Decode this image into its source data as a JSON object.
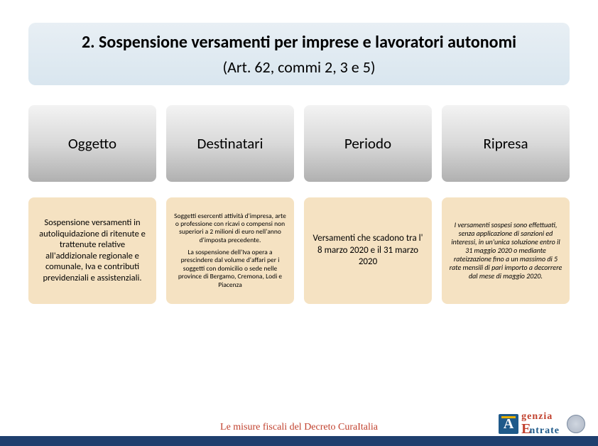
{
  "header": {
    "title": "2. Sospensione versamenti per imprese e lavoratori autonomi",
    "subtitle": "(Art. 62, commi 2, 3 e 5)"
  },
  "columns": [
    {
      "label": "Oggetto",
      "body_class": "body-lg",
      "body": "Sospensione versamenti in autoliquidazione di ritenute e trattenute relative all'addizionale regionale e comunale, Iva e contributi previdenziali e assistenziali."
    },
    {
      "label": "Destinatari",
      "body_class": "body-sm",
      "body": "Soggetti esercenti attività d'impresa, arte o professione con ricavi o compensi non superiori a 2 milioni di euro nell'anno d'imposta precedente.",
      "body2": "La sospensione dell'Iva opera a prescindere dal volume d'affari per i soggetti con domicilio o sede nelle province di Bergamo, Cremona, Lodi e Piacenza"
    },
    {
      "label": "Periodo",
      "body_class": "body-md",
      "body": "Versamenti che scadono tra l' 8 marzo 2020 e il 31 marzo 2020"
    },
    {
      "label": "Ripresa",
      "body_class": "body-xs",
      "body": "I versamenti sospesi sono effettuati, senza applicazione di sanzioni ed interessi, in un'unica soluzione entro il 31 maggio 2020 o mediante rateizzazione fino a un massimo di 5 rate mensili di pari importo a decorrere dal mese di maggio 2020."
    }
  ],
  "footer": {
    "text": "Le misure fiscali del Decreto CuraItalia",
    "logo_line1": "genzia",
    "logo_line2": "ntrate"
  },
  "colors": {
    "header_bg_top": "#e8eff4",
    "header_bg_bottom": "#d9e6ef",
    "col_header_grad_top": "#f3f3f3",
    "col_header_grad_bot": "#b0b0b0",
    "col_body_bg": "#f5e2c2",
    "footer_bar": "#1f3f6e",
    "footer_text": "#c1412e",
    "logo_blue": "#1f5a8a",
    "logo_red": "#c1412e"
  }
}
